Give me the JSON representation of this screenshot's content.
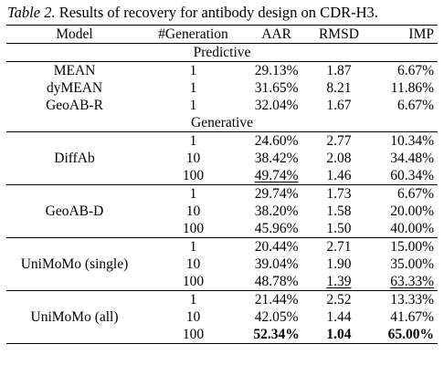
{
  "caption": {
    "table_number": "Table 2.",
    "text": " Results of recovery for antibody design on CDR-H3."
  },
  "headers": [
    "Model",
    "#Generation",
    "AAR",
    "RMSD",
    "IMP"
  ],
  "sections": [
    {
      "label": "Predictive",
      "groups": [
        {
          "model": "MEAN",
          "rows": [
            {
              "gen": "1",
              "aar": "29.13%",
              "rmsd": "1.87",
              "imp": "6.67%"
            }
          ]
        },
        {
          "model": "dyMEAN",
          "rows": [
            {
              "gen": "1",
              "aar": "31.65%",
              "rmsd": "8.21",
              "imp": "11.86%"
            }
          ]
        },
        {
          "model": "GeoAB-R",
          "rows": [
            {
              "gen": "1",
              "aar": "32.04%",
              "rmsd": "1.67",
              "imp": "6.67%"
            }
          ]
        }
      ]
    },
    {
      "label": "Generative",
      "groups": [
        {
          "model": "DiffAb",
          "rows": [
            {
              "gen": "1",
              "aar": "24.60%",
              "rmsd": "2.77",
              "imp": "10.34%"
            },
            {
              "gen": "10",
              "aar": "38.42%",
              "rmsd": "2.08",
              "imp": "34.48%"
            },
            {
              "gen": "100",
              "aar": "49.74%",
              "rmsd": "1.46",
              "imp": "60.34%",
              "underline": [
                "aar"
              ]
            }
          ]
        },
        {
          "model": "GeoAB-D",
          "rows": [
            {
              "gen": "1",
              "aar": "29.74%",
              "rmsd": "1.73",
              "imp": "6.67%"
            },
            {
              "gen": "10",
              "aar": "38.20%",
              "rmsd": "1.58",
              "imp": "20.00%"
            },
            {
              "gen": "100",
              "aar": "45.96%",
              "rmsd": "1.50",
              "imp": "40.00%"
            }
          ]
        },
        {
          "model": "UniMoMo (single)",
          "rows": [
            {
              "gen": "1",
              "aar": "20.44%",
              "rmsd": "2.71",
              "imp": "15.00%"
            },
            {
              "gen": "10",
              "aar": "39.04%",
              "rmsd": "1.90",
              "imp": "35.00%"
            },
            {
              "gen": "100",
              "aar": "48.78%",
              "rmsd": "1.39",
              "imp": "63.33%",
              "underline": [
                "rmsd",
                "imp"
              ]
            }
          ]
        },
        {
          "model": "UniMoMo (all)",
          "rows": [
            {
              "gen": "1",
              "aar": "21.44%",
              "rmsd": "2.52",
              "imp": "13.33%"
            },
            {
              "gen": "10",
              "aar": "42.05%",
              "rmsd": "1.44",
              "imp": "41.67%"
            },
            {
              "gen": "100",
              "aar": "52.34%",
              "rmsd": "1.04",
              "imp": "65.00%",
              "bold": [
                "aar",
                "rmsd",
                "imp"
              ]
            }
          ]
        }
      ]
    }
  ]
}
